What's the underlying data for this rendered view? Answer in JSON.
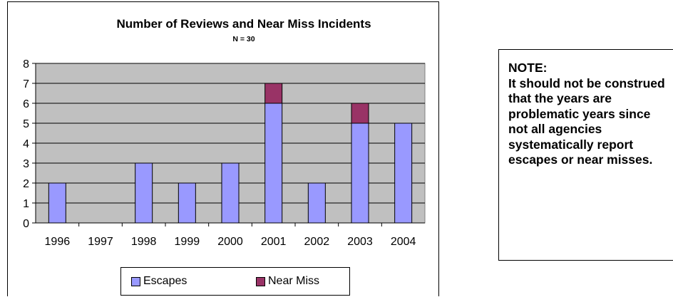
{
  "chart_data": {
    "type": "bar",
    "stacked": true,
    "title": "Number of Reviews and Near Miss Incidents",
    "subtitle": "N = 30",
    "categories": [
      "1996",
      "1997",
      "1998",
      "1999",
      "2000",
      "2001",
      "2002",
      "2003",
      "2004"
    ],
    "series": [
      {
        "name": "Escapes",
        "values": [
          2,
          0,
          3,
          2,
          3,
          6,
          2,
          5,
          5
        ],
        "color": "#9999ff"
      },
      {
        "name": "Near Miss",
        "values": [
          0,
          0,
          0,
          0,
          0,
          1,
          0,
          1,
          0
        ],
        "color": "#993366"
      }
    ],
    "ylim": [
      0,
      8
    ],
    "yticks": [
      0,
      1,
      2,
      3,
      4,
      5,
      6,
      7,
      8
    ],
    "grid": true,
    "plot_background": "#c0c0c0",
    "legend_position": "bottom"
  },
  "note": {
    "title": "NOTE:",
    "body": "It should not be construed that the years are problematic years since not all agencies systematically report escapes or near misses."
  }
}
